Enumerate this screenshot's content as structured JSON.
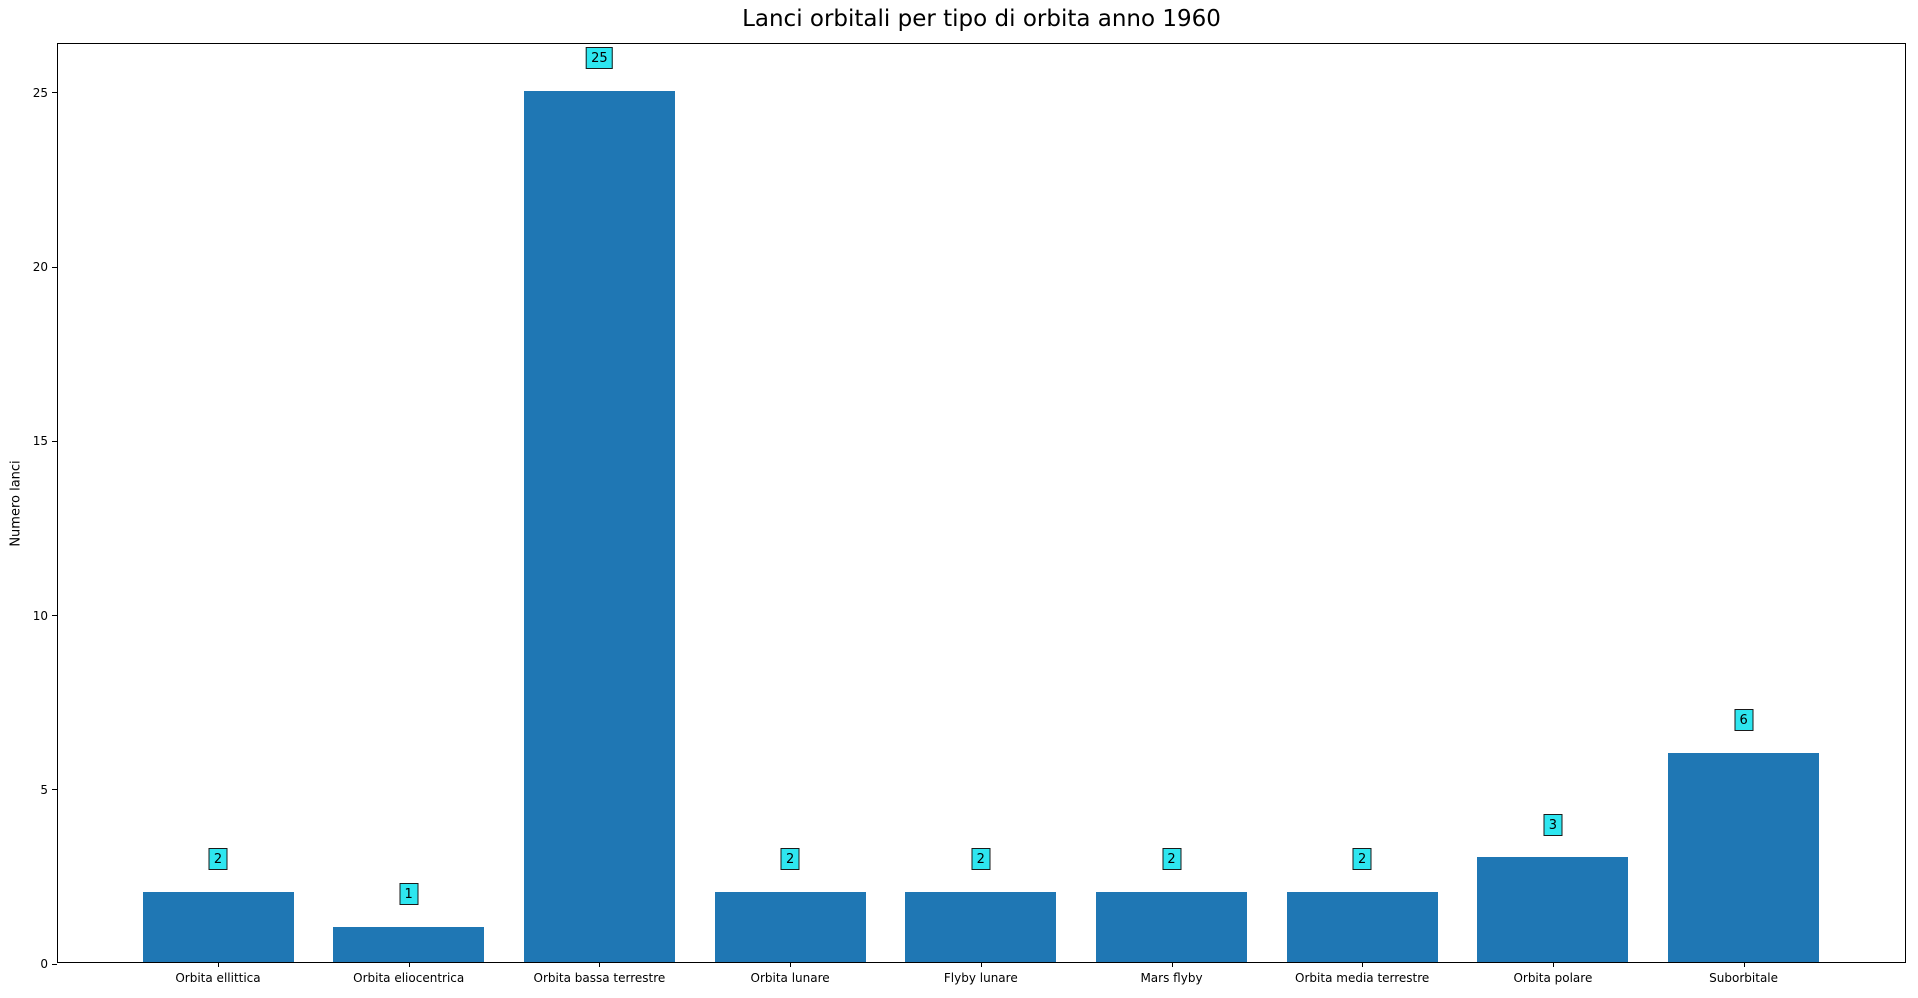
{
  "chart_data": {
    "type": "bar",
    "title": "Lanci orbitali per tipo di orbita anno 1960",
    "xlabel": "",
    "ylabel": "Numero lanci",
    "categories": [
      "Orbita ellittica",
      "Orbita eliocentrica",
      "Orbita bassa terrestre",
      "Orbita lunare",
      "Flyby lunare",
      "Mars flyby",
      "Orbita media terrestre",
      "Orbita polare",
      "Suborbitale"
    ],
    "values": [
      2,
      1,
      25,
      2,
      2,
      2,
      2,
      3,
      6
    ],
    "bar_value_labels": [
      "2",
      "1",
      "25",
      "2",
      "2",
      "2",
      "2",
      "3",
      "6"
    ],
    "yticks": [
      0,
      5,
      10,
      15,
      20,
      25
    ],
    "ylim": [
      0,
      26.4
    ],
    "grid": false,
    "legend": null,
    "annotation_offset_units": 1,
    "colors": {
      "bar": "#1f77b4",
      "annotation_fill": "#2ee6f0",
      "annotation_border": "#1a1a1a",
      "spine": "#000000",
      "text": "#000000"
    }
  }
}
